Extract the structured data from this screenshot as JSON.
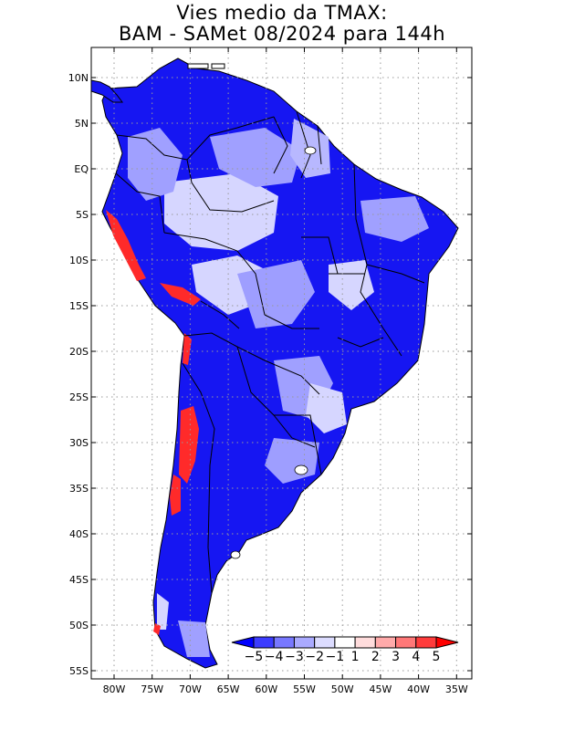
{
  "title": {
    "line1": "Vies medio da TMAX:",
    "line2": "BAM - SAMet 08/2024  para 144h"
  },
  "axes": {
    "lat_labels": [
      "10N",
      "5N",
      "EQ",
      "5S",
      "10S",
      "15S",
      "20S",
      "25S",
      "30S",
      "35S",
      "40S",
      "45S",
      "50S",
      "55S"
    ],
    "lon_labels": [
      "80W",
      "75W",
      "70W",
      "65W",
      "60W",
      "55W",
      "50W",
      "45W",
      "40W",
      "35W"
    ]
  },
  "colorbar": {
    "labels": [
      "-5",
      "-4",
      "-3",
      "-2",
      "-1",
      "1",
      "2",
      "3",
      "4",
      "5"
    ],
    "colors": [
      "#0000ff",
      "#3c3cff",
      "#7878ff",
      "#aaaaff",
      "#dcdcff",
      "#ffffff",
      "#ffdcdc",
      "#ffaaaa",
      "#ff7878",
      "#ff3c3c",
      "#ff0000"
    ]
  },
  "map_colors": {
    "strong_negative": "#0a0af5",
    "medium_negative": "#4a4aff",
    "light_negative": "#9e9eff",
    "pale_negative": "#d6d6ff",
    "positive": "#ff2a2a",
    "water": "#ffffff",
    "border": "#000000"
  }
}
